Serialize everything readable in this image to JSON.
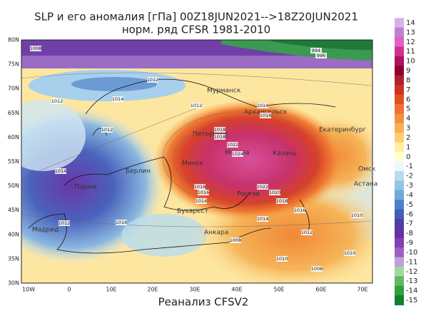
{
  "header": {
    "title": "SLP и его аномалия [гПа] 00Z18JUN2021-->18Z20JUN2021",
    "subtitle": "норм. ряд CFSR 1981-2010"
  },
  "map": {
    "lat_ticks": [
      "80N",
      "75N",
      "70N",
      "65N",
      "60N",
      "55N",
      "50N",
      "45N",
      "40N",
      "35N",
      "30N"
    ],
    "lon_ticks": [
      "10W",
      "0",
      "10E",
      "20E",
      "30E",
      "40E",
      "50E",
      "60E",
      "70E"
    ],
    "cities": [
      "Мурманск",
      "Архангельск",
      "Петербург",
      "Москва",
      "Казань",
      "Екатеринбург",
      "Омск",
      "Астана",
      "Минск",
      "Берлин",
      "Париж",
      "Бухарест",
      "Мадрид",
      "Анкара",
      "Ростов"
    ],
    "isobar_labels": [
      1008,
      994,
      996,
      1012,
      1014,
      1012,
      1012,
      1012,
      1014,
      1016,
      1018,
      1018,
      1022,
      1024,
      1014,
      1018,
      1016,
      1014,
      1022,
      1020,
      1018,
      1016,
      1012,
      1016,
      1014,
      1012,
      1008,
      1010,
      1010,
      1010,
      1008
    ]
  },
  "colorbar": {
    "levels": [
      14,
      13,
      12,
      11,
      10,
      9,
      8,
      7,
      6,
      5,
      4,
      3,
      2,
      1,
      0,
      -1,
      -2,
      -3,
      -4,
      -5,
      -6,
      -7,
      -8,
      -9,
      -10,
      -11,
      -12,
      -13,
      -14,
      -15
    ]
  },
  "footer": "Реанализ CFSV2"
}
